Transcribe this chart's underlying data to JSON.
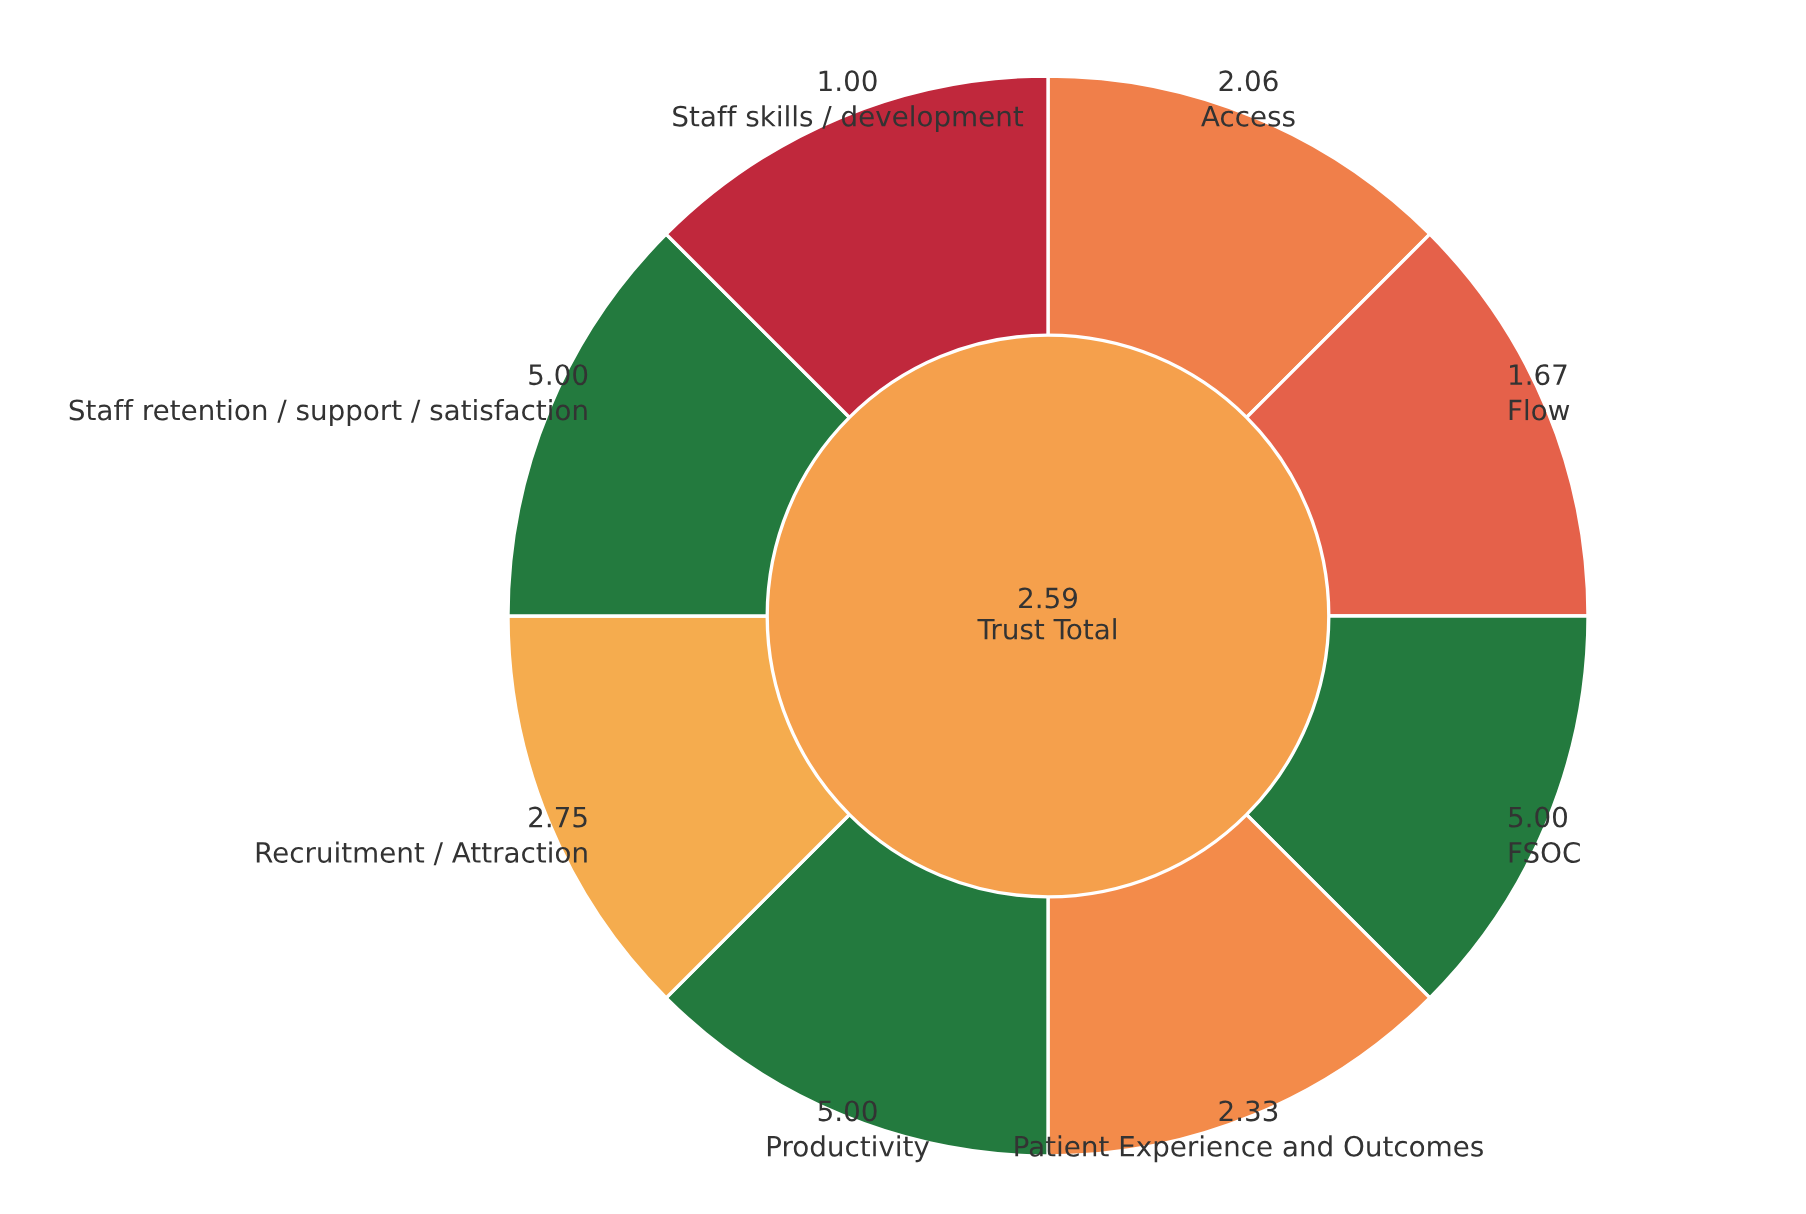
{
  "chart_data": [
    {
      "type": "other",
      "categories": [
        "Access",
        "Flow",
        "FSOC",
        "Patient Experience and Outcomes",
        "Productivity",
        "Recruitment / Attraction",
        "Staff retention / support / satisfaction",
        "Staff skills / development"
      ],
      "values": [
        2.06,
        1.67,
        5.0,
        2.33,
        5.0,
        2.75,
        5.0,
        1.0
      ],
      "value_labels": [
        "2.06",
        "1.67",
        "5.00",
        "2.33",
        "5.00",
        "2.75",
        "5.00",
        "1.00"
      ],
      "colors": [
        "#f07f4a",
        "#e5614a",
        "#237a3e",
        "#f38b4a",
        "#237a3e",
        "#f5ac4e",
        "#237a3e",
        "#c0283c"
      ]
    },
    {
      "type": "other",
      "categories": [
        "Trust Total"
      ],
      "values": [
        2.59
      ],
      "value_labels": [
        "2.59"
      ],
      "colors": [
        "#f5a04c"
      ]
    }
  ]
}
